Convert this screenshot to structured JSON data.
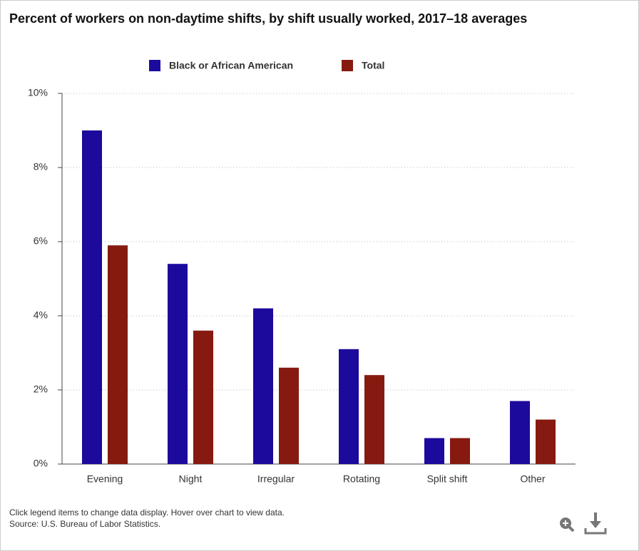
{
  "chart_data": {
    "type": "bar",
    "title": "Percent of workers on non-daytime shifts, by shift usually worked, 2017–18 averages",
    "categories": [
      "Evening",
      "Night",
      "Irregular",
      "Rotating",
      "Split shift",
      "Other"
    ],
    "series": [
      {
        "name": "Black or African American",
        "color": "#1c0a9c",
        "values": [
          9.0,
          5.4,
          4.2,
          3.1,
          0.7,
          1.7
        ]
      },
      {
        "name": "Total",
        "color": "#861a10",
        "values": [
          5.9,
          3.6,
          2.6,
          2.4,
          0.7,
          1.2
        ]
      }
    ],
    "ylim": [
      0,
      10
    ],
    "yticks": [
      {
        "value": 0,
        "label": "0%"
      },
      {
        "value": 2,
        "label": "2%"
      },
      {
        "value": 4,
        "label": "4%"
      },
      {
        "value": 6,
        "label": "6%"
      },
      {
        "value": 8,
        "label": "8%"
      },
      {
        "value": 10,
        "label": "10%"
      }
    ],
    "grid": true
  },
  "notes": [
    "Click legend items to change data display. Hover over chart to view data.",
    "Source: U.S. Bureau of Labor Statistics."
  ]
}
